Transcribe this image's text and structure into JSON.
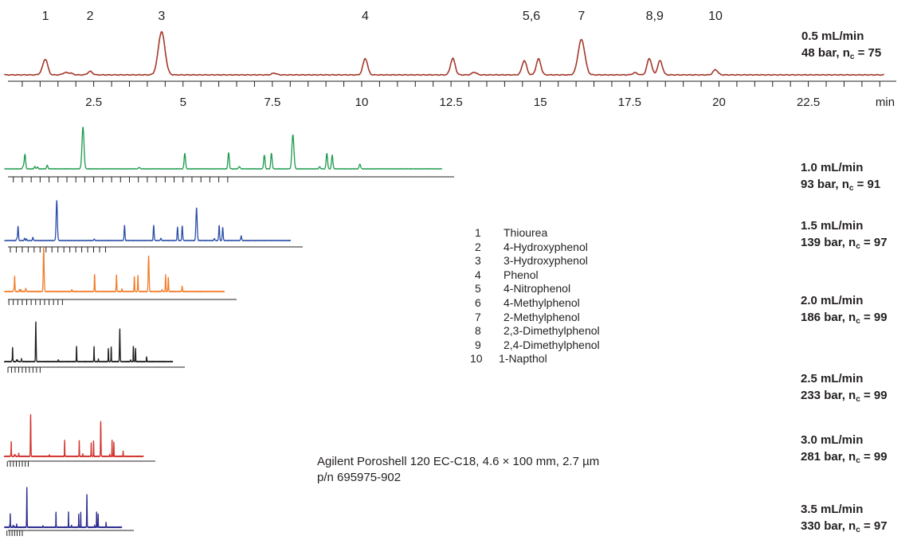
{
  "chart_data": {
    "type": "line",
    "x_unit": "min",
    "xlim": [
      0,
      25.5
    ],
    "x_tick_labels": [
      "2.5",
      "5",
      "7.5",
      "10",
      "12.5",
      "15",
      "17.5",
      "20",
      "22.5"
    ],
    "x_unit_label": "min",
    "peak_labels": [
      {
        "label": "1",
        "time": 1.15
      },
      {
        "label": "2",
        "time": 2.4
      },
      {
        "label": "3",
        "time": 4.4
      },
      {
        "label": "4",
        "time": 10.1
      },
      {
        "label": "5,6",
        "time": 14.75
      },
      {
        "label": "7",
        "time": 16.15
      },
      {
        "label": "8,9",
        "time": 18.2
      },
      {
        "label": "10",
        "time": 19.9
      }
    ],
    "peaks_at_0_5_mL_min": [
      {
        "time": 1.05,
        "height": 0.05
      },
      {
        "time": 1.15,
        "height": 0.35
      },
      {
        "time": 1.7,
        "height": 0.05
      },
      {
        "time": 1.85,
        "height": 0.04
      },
      {
        "time": 2.4,
        "height": 0.08
      },
      {
        "time": 4.4,
        "height": 1.0
      },
      {
        "time": 7.55,
        "height": 0.04
      },
      {
        "time": 10.1,
        "height": 0.38
      },
      {
        "time": 12.55,
        "height": 0.38
      },
      {
        "time": 13.15,
        "height": 0.06
      },
      {
        "time": 14.55,
        "height": 0.33
      },
      {
        "time": 14.95,
        "height": 0.37
      },
      {
        "time": 16.15,
        "height": 0.82
      },
      {
        "time": 17.65,
        "height": 0.05
      },
      {
        "time": 18.05,
        "height": 0.38
      },
      {
        "time": 18.35,
        "height": 0.33
      },
      {
        "time": 19.9,
        "height": 0.12
      }
    ],
    "series": [
      {
        "flow": "0.5 mL/min",
        "pressure": "48 bar, n",
        "nc": "75",
        "color": "#a3382a",
        "time_scale": 1.0
      },
      {
        "flow": "1.0 mL/min",
        "pressure": "93 bar, n",
        "nc": "91",
        "color": "#1b9a4b",
        "time_scale": 0.5
      },
      {
        "flow": "1.5 mL/min",
        "pressure": "139 bar, n",
        "nc": "97",
        "color": "#2c4fa8",
        "time_scale": 0.333
      },
      {
        "flow": "2.0 mL/min",
        "pressure": "186 bar, n",
        "nc": "99",
        "color": "#f47c2a",
        "time_scale": 0.25
      },
      {
        "flow": "2.5 mL/min",
        "pressure": "233 bar, n",
        "nc": "99",
        "color": "#231f20",
        "time_scale": 0.2
      },
      {
        "flow": "3.0 mL/min",
        "pressure": "281 bar, n",
        "nc": "99",
        "color": "#d2322d",
        "time_scale": 0.167
      },
      {
        "flow": "3.5 mL/min",
        "pressure": "330 bar, n",
        "nc": "97",
        "color": "#2a2a90",
        "time_scale": 0.143
      }
    ]
  },
  "compounds": [
    {
      "num": "1",
      "name": "Thiourea"
    },
    {
      "num": "2",
      "name": "4-Hydroxyphenol"
    },
    {
      "num": "3",
      "name": "3-Hydroxyphenol"
    },
    {
      "num": "4",
      "name": "Phenol"
    },
    {
      "num": "5",
      "name": "4-Nitrophenol"
    },
    {
      "num": "6",
      "name": "4-Methylphenol"
    },
    {
      "num": "7",
      "name": "2-Methylphenol"
    },
    {
      "num": "8",
      "name": "2,3-Dimethylphenol"
    },
    {
      "num": "9",
      "name": "2,4-Dimethylphenol"
    },
    {
      "num": "10",
      "name": "1-Napthol"
    }
  ],
  "column": {
    "line1": "Agilent Poroshell 120 EC-C18, 4.6 × 100 mm, 2.7 µm",
    "line2": "p/n 695975-902"
  },
  "nc_sub": "c",
  "nc_eq": " = "
}
